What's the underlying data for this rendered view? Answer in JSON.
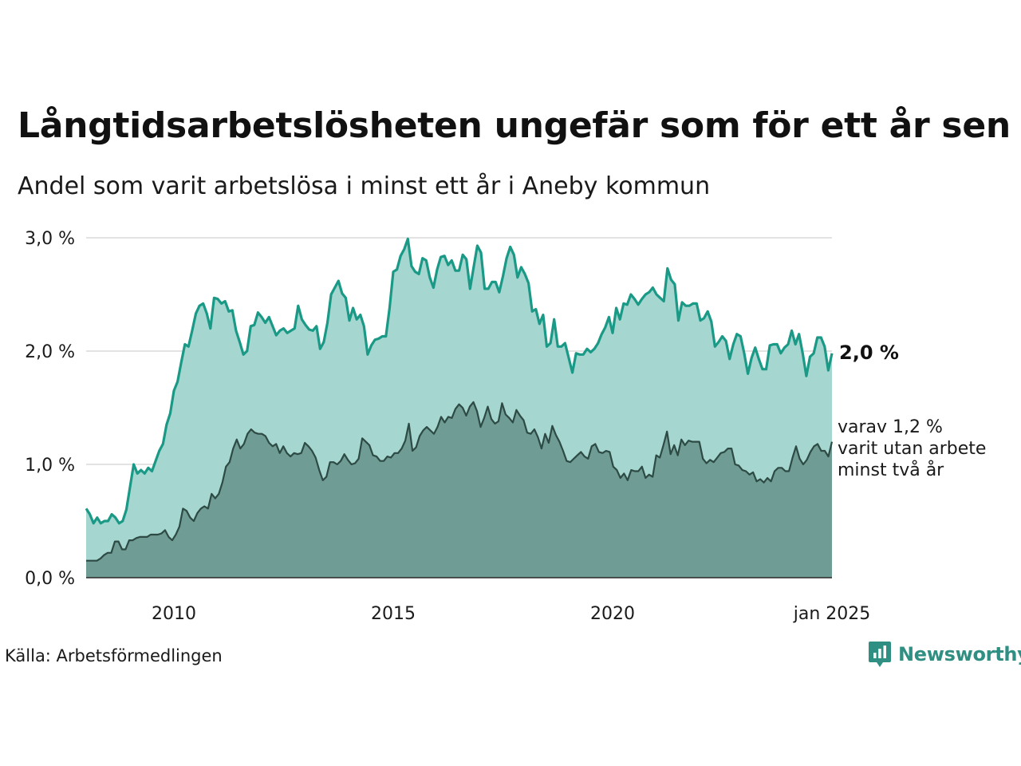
{
  "title": "Långtidsarbetslösheten ungefär som för ett år sen",
  "subtitle": "Andel som varit arbetslösa i minst ett år i Aneby kommun",
  "source": "Källa: Arbetsförmedlingen",
  "logo_text": "Newsworthy",
  "colors": {
    "main_line": "#1a9a86",
    "main_fill": "#a5d6d0",
    "sub_line": "#2d4a44",
    "sub_fill": "#6f9c95",
    "grid": "#e3e3e3",
    "logo": "#2f8f83"
  },
  "chart_data": {
    "type": "area",
    "x_start": "2008-01",
    "x_end": "2025-01",
    "frequency": "monthly",
    "y_ticks": [
      "0,0 %",
      "1,0 %",
      "2,0 %",
      "3,0 %"
    ],
    "y_tick_values": [
      0,
      1,
      2,
      3
    ],
    "ylim": [
      0,
      3
    ],
    "x_ticks": [
      "2010",
      "2015",
      "2020",
      "jan 2025"
    ],
    "x_tick_values": [
      2010,
      2015,
      2020,
      2025
    ],
    "grid": true,
    "end_label_main": "2,0 %",
    "end_label_sub": [
      "varav 1,2 %",
      "varit utan arbete",
      "minst två år"
    ],
    "series": [
      {
        "name": "",
        "values": [
          0.61,
          0.56,
          0.48,
          0.53,
          0.48,
          0.5,
          0.5,
          0.56,
          0.53,
          0.48,
          0.5,
          0.6,
          0.8,
          1.0,
          0.92,
          0.95,
          0.92,
          0.97,
          0.94,
          1.03,
          1.12,
          1.18,
          1.35,
          1.45,
          1.65,
          1.73,
          1.9,
          2.06,
          2.04,
          2.18,
          2.33,
          2.4,
          2.42,
          2.33,
          2.2,
          2.47,
          2.46,
          2.42,
          2.44,
          2.35,
          2.36,
          2.18,
          2.08,
          1.97,
          2.0,
          2.22,
          2.23,
          2.34,
          2.3,
          2.25,
          2.3,
          2.22,
          2.14,
          2.18,
          2.2,
          2.16,
          2.18,
          2.2,
          2.4,
          2.28,
          2.23,
          2.19,
          2.18,
          2.22,
          2.02,
          2.08,
          2.25,
          2.5,
          2.56,
          2.62,
          2.51,
          2.47,
          2.27,
          2.38,
          2.28,
          2.32,
          2.22,
          1.97,
          2.05,
          2.1,
          2.11,
          2.13,
          2.13,
          2.38,
          2.7,
          2.72,
          2.84,
          2.9,
          2.99,
          2.75,
          2.7,
          2.68,
          2.82,
          2.8,
          2.65,
          2.56,
          2.72,
          2.83,
          2.84,
          2.76,
          2.8,
          2.71,
          2.71,
          2.85,
          2.81,
          2.55,
          2.74,
          2.93,
          2.87,
          2.55,
          2.55,
          2.61,
          2.61,
          2.52,
          2.66,
          2.82,
          2.92,
          2.85,
          2.65,
          2.74,
          2.68,
          2.6,
          2.35,
          2.37,
          2.24,
          2.32,
          2.04,
          2.07,
          2.28,
          2.04,
          2.04,
          2.07,
          1.94,
          1.81,
          1.98,
          1.97,
          1.97,
          2.02,
          1.99,
          2.02,
          2.07,
          2.15,
          2.21,
          2.3,
          2.16,
          2.38,
          2.28,
          2.42,
          2.41,
          2.5,
          2.46,
          2.41,
          2.46,
          2.5,
          2.52,
          2.56,
          2.5,
          2.47,
          2.44,
          2.73,
          2.63,
          2.59,
          2.27,
          2.43,
          2.4,
          2.4,
          2.42,
          2.42,
          2.27,
          2.29,
          2.35,
          2.26,
          2.04,
          2.08,
          2.13,
          2.09,
          1.93,
          2.06,
          2.15,
          2.13,
          1.98,
          1.8,
          1.94,
          2.03,
          1.93,
          1.84,
          1.84,
          2.05,
          2.06,
          2.06,
          1.98,
          2.03,
          2.06,
          2.18,
          2.06,
          2.15,
          1.98,
          1.78,
          1.95,
          1.98,
          2.12,
          2.12,
          2.04,
          1.83,
          1.98
        ]
      },
      {
        "name": "",
        "values": [
          0.15,
          0.15,
          0.15,
          0.15,
          0.17,
          0.2,
          0.22,
          0.22,
          0.32,
          0.32,
          0.25,
          0.25,
          0.33,
          0.33,
          0.35,
          0.36,
          0.36,
          0.36,
          0.38,
          0.38,
          0.38,
          0.39,
          0.42,
          0.36,
          0.33,
          0.38,
          0.45,
          0.61,
          0.59,
          0.53,
          0.5,
          0.57,
          0.61,
          0.63,
          0.61,
          0.74,
          0.7,
          0.74,
          0.84,
          0.98,
          1.02,
          1.14,
          1.22,
          1.14,
          1.18,
          1.27,
          1.31,
          1.28,
          1.27,
          1.27,
          1.25,
          1.19,
          1.16,
          1.18,
          1.1,
          1.16,
          1.1,
          1.07,
          1.1,
          1.09,
          1.1,
          1.19,
          1.16,
          1.12,
          1.06,
          0.95,
          0.86,
          0.89,
          1.02,
          1.02,
          1.0,
          1.03,
          1.09,
          1.04,
          1.0,
          1.01,
          1.05,
          1.23,
          1.2,
          1.17,
          1.08,
          1.07,
          1.03,
          1.03,
          1.07,
          1.06,
          1.1,
          1.1,
          1.14,
          1.21,
          1.36,
          1.12,
          1.15,
          1.25,
          1.3,
          1.33,
          1.3,
          1.27,
          1.33,
          1.42,
          1.37,
          1.42,
          1.41,
          1.49,
          1.53,
          1.5,
          1.43,
          1.51,
          1.55,
          1.47,
          1.33,
          1.41,
          1.51,
          1.4,
          1.36,
          1.38,
          1.54,
          1.44,
          1.41,
          1.37,
          1.48,
          1.43,
          1.39,
          1.28,
          1.27,
          1.31,
          1.24,
          1.14,
          1.27,
          1.19,
          1.34,
          1.26,
          1.2,
          1.12,
          1.03,
          1.02,
          1.05,
          1.08,
          1.11,
          1.07,
          1.05,
          1.16,
          1.18,
          1.11,
          1.1,
          1.12,
          1.11,
          0.98,
          0.95,
          0.88,
          0.92,
          0.86,
          0.95,
          0.94,
          0.94,
          0.98,
          0.88,
          0.91,
          0.89,
          1.08,
          1.06,
          1.17,
          1.29,
          1.09,
          1.17,
          1.08,
          1.22,
          1.17,
          1.21,
          1.2,
          1.2,
          1.2,
          1.05,
          1.01,
          1.04,
          1.02,
          1.06,
          1.1,
          1.11,
          1.14,
          1.14,
          1.0,
          0.99,
          0.95,
          0.94,
          0.91,
          0.93,
          0.85,
          0.87,
          0.84,
          0.88,
          0.85,
          0.94,
          0.97,
          0.97,
          0.94,
          0.94,
          1.06,
          1.16,
          1.05,
          1.0,
          1.04,
          1.11,
          1.16,
          1.18,
          1.12,
          1.12,
          1.07,
          1.2
        ]
      }
    ]
  }
}
